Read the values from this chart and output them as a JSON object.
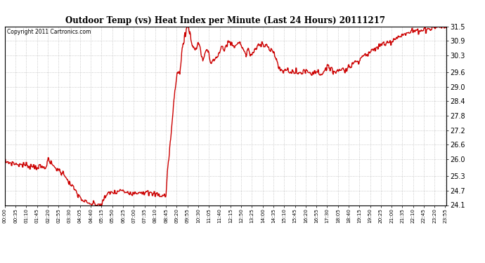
{
  "title": "Outdoor Temp (vs) Heat Index per Minute (Last 24 Hours) 20111217",
  "copyright": "Copyright 2011 Cartronics.com",
  "line_color": "#cc0000",
  "bg_color": "#ffffff",
  "grid_color": "#bbbbbb",
  "ylim": [
    24.1,
    31.5
  ],
  "yticks": [
    24.1,
    24.7,
    25.3,
    26.0,
    26.6,
    27.2,
    27.8,
    28.4,
    29.0,
    29.6,
    30.3,
    30.9,
    31.5
  ],
  "xtick_labels": [
    "00:00",
    "00:35",
    "01:10",
    "01:45",
    "02:20",
    "02:55",
    "03:30",
    "04:05",
    "04:40",
    "05:15",
    "05:50",
    "06:25",
    "07:00",
    "07:35",
    "08:10",
    "08:45",
    "09:20",
    "09:55",
    "10:30",
    "11:05",
    "11:40",
    "12:15",
    "12:50",
    "13:25",
    "14:00",
    "14:35",
    "15:10",
    "15:45",
    "16:20",
    "16:55",
    "17:30",
    "18:05",
    "18:40",
    "19:15",
    "19:50",
    "20:25",
    "21:00",
    "21:35",
    "22:10",
    "22:45",
    "23:20",
    "23:55"
  ],
  "control_points": [
    [
      0,
      25.9
    ],
    [
      20,
      25.85
    ],
    [
      35,
      25.8
    ],
    [
      70,
      25.75
    ],
    [
      100,
      25.7
    ],
    [
      130,
      25.65
    ],
    [
      140,
      25.95
    ],
    [
      160,
      25.7
    ],
    [
      180,
      25.5
    ],
    [
      200,
      25.3
    ],
    [
      210,
      25.0
    ],
    [
      230,
      24.7
    ],
    [
      245,
      24.4
    ],
    [
      260,
      24.25
    ],
    [
      270,
      24.15
    ],
    [
      285,
      24.15
    ],
    [
      300,
      24.12
    ],
    [
      315,
      24.12
    ],
    [
      330,
      24.5
    ],
    [
      345,
      24.65
    ],
    [
      360,
      24.6
    ],
    [
      375,
      24.7
    ],
    [
      390,
      24.65
    ],
    [
      405,
      24.65
    ],
    [
      420,
      24.6
    ],
    [
      435,
      24.65
    ],
    [
      450,
      24.65
    ],
    [
      465,
      24.6
    ],
    [
      480,
      24.55
    ],
    [
      495,
      24.55
    ],
    [
      510,
      24.5
    ],
    [
      515,
      24.5
    ],
    [
      525,
      24.5
    ],
    [
      530,
      25.5
    ],
    [
      545,
      27.5
    ],
    [
      555,
      29.0
    ],
    [
      560,
      29.5
    ],
    [
      565,
      29.6
    ],
    [
      570,
      29.5
    ],
    [
      575,
      30.2
    ],
    [
      580,
      30.8
    ],
    [
      585,
      31.0
    ],
    [
      590,
      31.3
    ],
    [
      595,
      31.5
    ],
    [
      600,
      31.4
    ],
    [
      605,
      31.1
    ],
    [
      610,
      30.8
    ],
    [
      615,
      30.6
    ],
    [
      620,
      30.5
    ],
    [
      625,
      30.6
    ],
    [
      630,
      30.9
    ],
    [
      635,
      30.7
    ],
    [
      640,
      30.3
    ],
    [
      645,
      30.1
    ],
    [
      650,
      30.3
    ],
    [
      655,
      30.5
    ],
    [
      660,
      30.5
    ],
    [
      665,
      30.3
    ],
    [
      670,
      30.0
    ],
    [
      680,
      30.1
    ],
    [
      690,
      30.2
    ],
    [
      695,
      30.3
    ],
    [
      700,
      30.4
    ],
    [
      705,
      30.6
    ],
    [
      710,
      30.6
    ],
    [
      715,
      30.5
    ],
    [
      720,
      30.7
    ],
    [
      725,
      30.8
    ],
    [
      730,
      30.85
    ],
    [
      735,
      30.8
    ],
    [
      740,
      30.75
    ],
    [
      745,
      30.7
    ],
    [
      750,
      30.7
    ],
    [
      755,
      30.75
    ],
    [
      760,
      30.8
    ],
    [
      765,
      30.8
    ],
    [
      770,
      30.75
    ],
    [
      775,
      30.6
    ],
    [
      780,
      30.4
    ],
    [
      785,
      30.3
    ],
    [
      790,
      30.5
    ],
    [
      795,
      30.5
    ],
    [
      800,
      30.3
    ],
    [
      810,
      30.4
    ],
    [
      820,
      30.6
    ],
    [
      825,
      30.7
    ],
    [
      830,
      30.75
    ],
    [
      835,
      30.8
    ],
    [
      840,
      30.8
    ],
    [
      850,
      30.75
    ],
    [
      860,
      30.6
    ],
    [
      870,
      30.5
    ],
    [
      880,
      30.3
    ],
    [
      885,
      30.1
    ],
    [
      890,
      29.8
    ],
    [
      895,
      29.7
    ],
    [
      900,
      29.7
    ],
    [
      910,
      29.65
    ],
    [
      920,
      29.7
    ],
    [
      930,
      29.65
    ],
    [
      940,
      29.6
    ],
    [
      950,
      29.6
    ],
    [
      960,
      29.55
    ],
    [
      970,
      29.6
    ],
    [
      975,
      29.7
    ],
    [
      980,
      29.65
    ],
    [
      990,
      29.6
    ],
    [
      1000,
      29.55
    ],
    [
      1010,
      29.65
    ],
    [
      1020,
      29.6
    ],
    [
      1030,
      29.55
    ],
    [
      1040,
      29.6
    ],
    [
      1050,
      29.75
    ],
    [
      1060,
      29.8
    ],
    [
      1065,
      29.8
    ],
    [
      1070,
      29.65
    ],
    [
      1080,
      29.6
    ],
    [
      1090,
      29.7
    ],
    [
      1100,
      29.75
    ],
    [
      1110,
      29.7
    ],
    [
      1120,
      29.8
    ],
    [
      1130,
      29.9
    ],
    [
      1140,
      30.0
    ],
    [
      1150,
      30.1
    ],
    [
      1160,
      30.2
    ],
    [
      1170,
      30.3
    ],
    [
      1180,
      30.35
    ],
    [
      1190,
      30.4
    ],
    [
      1200,
      30.5
    ],
    [
      1210,
      30.6
    ],
    [
      1220,
      30.7
    ],
    [
      1230,
      30.75
    ],
    [
      1240,
      30.8
    ],
    [
      1250,
      30.85
    ],
    [
      1260,
      30.9
    ],
    [
      1270,
      31.0
    ],
    [
      1280,
      31.1
    ],
    [
      1290,
      31.1
    ],
    [
      1300,
      31.15
    ],
    [
      1310,
      31.2
    ],
    [
      1320,
      31.25
    ],
    [
      1330,
      31.3
    ],
    [
      1340,
      31.3
    ],
    [
      1350,
      31.35
    ],
    [
      1360,
      31.35
    ],
    [
      1370,
      31.38
    ],
    [
      1380,
      31.4
    ],
    [
      1390,
      31.42
    ],
    [
      1400,
      31.45
    ],
    [
      1410,
      31.48
    ],
    [
      1420,
      31.5
    ],
    [
      1438,
      31.5
    ]
  ],
  "line_width": 1.0
}
